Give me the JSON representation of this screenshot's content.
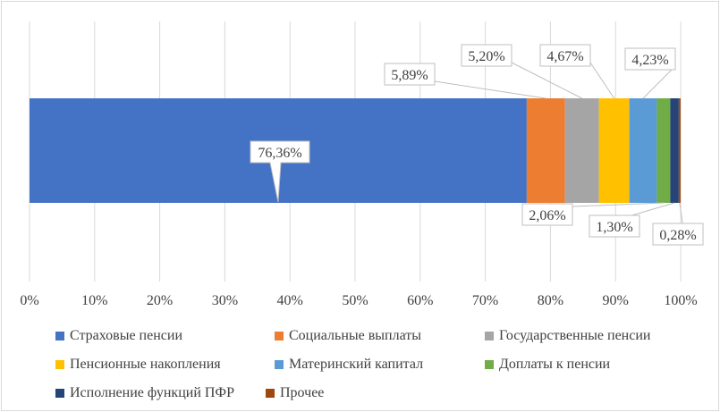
{
  "chart_data": {
    "type": "bar",
    "orientation": "horizontal-stacked-100",
    "xlim": [
      0,
      100
    ],
    "x_ticks": [
      "0%",
      "10%",
      "20%",
      "30%",
      "40%",
      "50%",
      "60%",
      "70%",
      "80%",
      "90%",
      "100%"
    ],
    "grid": true,
    "legend_position": "bottom",
    "series": [
      {
        "name": "Страховые пенсии",
        "value": 76.36,
        "label": "76,36%",
        "color": "#4472c4"
      },
      {
        "name": "Социальные выплаты",
        "value": 5.89,
        "label": "5,89%",
        "color": "#ed7d31"
      },
      {
        "name": "Государственные пенсии",
        "value": 5.2,
        "label": "5,20%",
        "color": "#a5a5a5"
      },
      {
        "name": "Пенсионные накопления",
        "value": 4.67,
        "label": "4,67%",
        "color": "#ffc000"
      },
      {
        "name": "Материнский капитал",
        "value": 4.23,
        "label": "4,23%",
        "color": "#5b9bd5"
      },
      {
        "name": "Доплаты к пенсии",
        "value": 2.06,
        "label": "2,06%",
        "color": "#70ad47"
      },
      {
        "name": "Исполнение функций ПФР",
        "value": 1.3,
        "label": "1,30%",
        "color": "#264478"
      },
      {
        "name": "Прочее",
        "value": 0.28,
        "label": "0,28%",
        "color": "#9e480e"
      }
    ]
  }
}
